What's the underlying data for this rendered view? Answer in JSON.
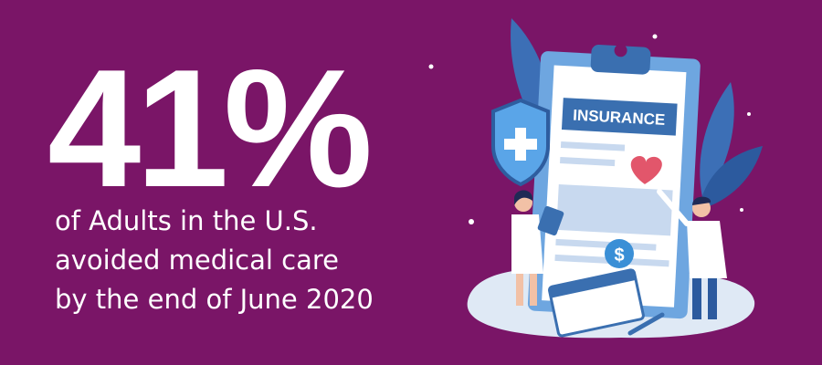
{
  "headline": "41%",
  "caption": [
    "of Adults in the U.S.",
    "avoided medical care",
    "by the end of June 2020"
  ],
  "illustration": {
    "clipboard_label": "INSURANCE",
    "coin_symbol": "$"
  }
}
